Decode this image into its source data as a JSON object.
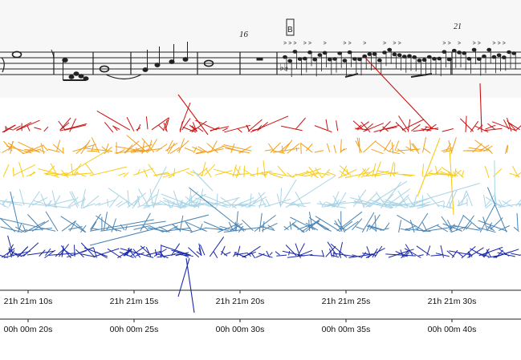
{
  "score": {
    "measure_number_1": "16",
    "rehearsal_mark": "B",
    "measure_number_2": "21"
  },
  "timeline": {
    "clock_ticks": [
      "21h 21m 10s",
      "21h 21m 15s",
      "21h 21m 20s",
      "21h 21m 25s",
      "21h 21m 30s"
    ],
    "elapsed_ticks": [
      "00h 00m 20s",
      "00h 00m 25s",
      "00h 00m 30s",
      "00h 00m 35s",
      "00h 00m 40s"
    ]
  },
  "bands": [
    {
      "id": "red",
      "color": "#cc1111"
    },
    {
      "id": "orange",
      "color": "#f0a020"
    },
    {
      "id": "yellow",
      "color": "#f7cc1a"
    },
    {
      "id": "lightblue",
      "color": "#a8d4e6"
    },
    {
      "id": "steelblue",
      "color": "#4a84b4"
    },
    {
      "id": "navy",
      "color": "#1a28a8"
    }
  ],
  "colors": {
    "score_background": "#f7f7f7",
    "staff": "#222222",
    "axis": "#222222"
  }
}
